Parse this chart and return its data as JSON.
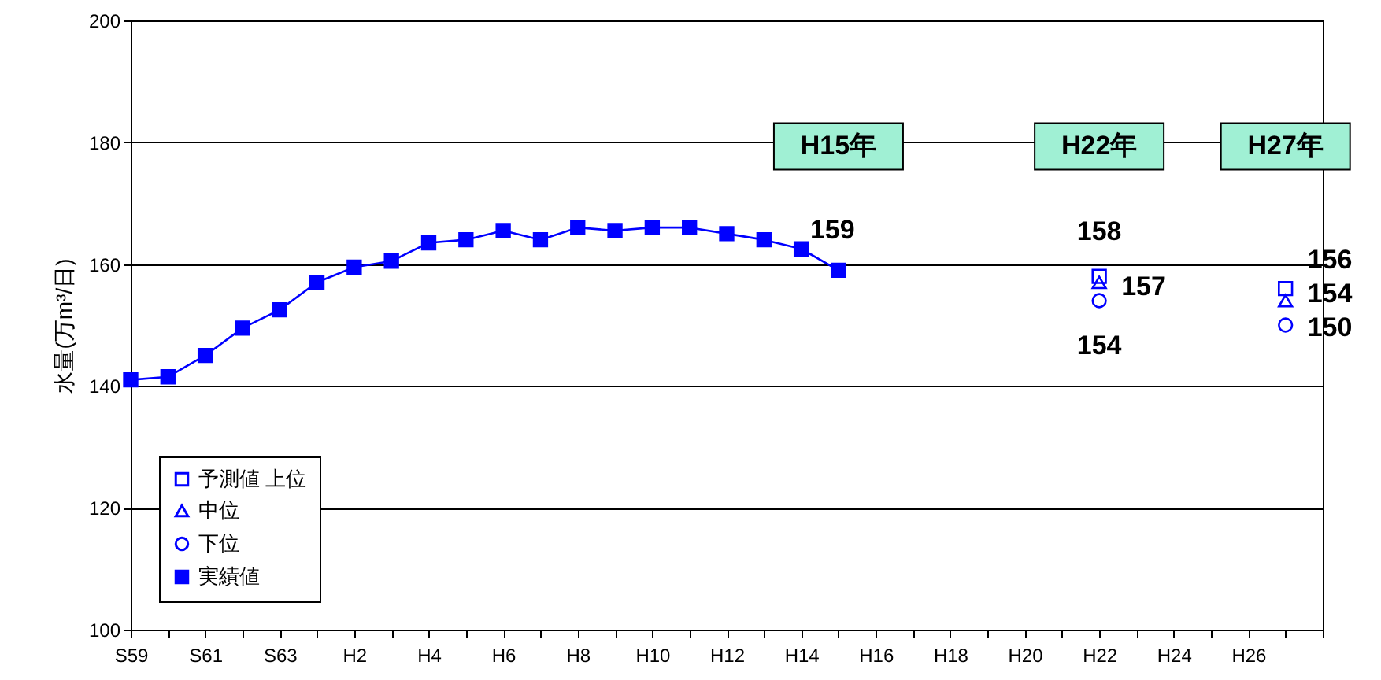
{
  "chart_data": {
    "type": "line",
    "ylabel": "水量(万m³/日)",
    "categories": [
      "S59",
      null,
      "S61",
      null,
      "S63",
      null,
      "H2",
      null,
      "H4",
      null,
      "H6",
      null,
      "H8",
      null,
      "H10",
      null,
      "H12",
      null,
      "H14",
      null,
      "H16",
      null,
      "H18",
      null,
      "H20",
      null,
      "H22",
      null,
      "H24",
      null,
      "H26",
      null,
      null
    ],
    "series": [
      {
        "name": "予測値 上位",
        "type": "scatter",
        "marker": "square",
        "color": "#0000ff",
        "values": [
          null,
          null,
          null,
          null,
          null,
          null,
          null,
          null,
          null,
          null,
          null,
          null,
          null,
          null,
          null,
          null,
          null,
          null,
          null,
          null,
          null,
          null,
          null,
          null,
          null,
          null,
          158,
          null,
          null,
          null,
          null,
          156,
          null
        ],
        "value_labels": [
          null,
          null,
          null,
          null,
          null,
          null,
          null,
          null,
          null,
          null,
          null,
          null,
          null,
          null,
          null,
          null,
          null,
          null,
          null,
          null,
          null,
          null,
          null,
          null,
          null,
          null,
          "158",
          null,
          null,
          null,
          null,
          "156",
          null
        ]
      },
      {
        "name": "中位",
        "type": "scatter",
        "marker": "triangle",
        "color": "#0000ff",
        "values": [
          null,
          null,
          null,
          null,
          null,
          null,
          null,
          null,
          null,
          null,
          null,
          null,
          null,
          null,
          null,
          null,
          null,
          null,
          null,
          null,
          null,
          null,
          null,
          null,
          null,
          null,
          157,
          null,
          null,
          null,
          null,
          154,
          null
        ],
        "value_labels": [
          null,
          null,
          null,
          null,
          null,
          null,
          null,
          null,
          null,
          null,
          null,
          null,
          null,
          null,
          null,
          null,
          null,
          null,
          null,
          null,
          null,
          null,
          null,
          null,
          null,
          null,
          "157",
          null,
          null,
          null,
          null,
          "154",
          null
        ]
      },
      {
        "name": "下位",
        "type": "scatter",
        "marker": "circle",
        "color": "#0000ff",
        "values": [
          null,
          null,
          null,
          null,
          null,
          null,
          null,
          null,
          null,
          null,
          null,
          null,
          null,
          null,
          null,
          null,
          null,
          null,
          null,
          null,
          null,
          null,
          null,
          null,
          null,
          null,
          154,
          null,
          null,
          null,
          null,
          150,
          null
        ],
        "value_labels": [
          null,
          null,
          null,
          null,
          null,
          null,
          null,
          null,
          null,
          null,
          null,
          null,
          null,
          null,
          null,
          null,
          null,
          null,
          null,
          null,
          null,
          null,
          null,
          null,
          null,
          null,
          "154",
          null,
          null,
          null,
          null,
          "150",
          null
        ]
      },
      {
        "name": "実績値",
        "type": "line",
        "marker": "square",
        "color": "#0000ff",
        "values": [
          141,
          141.5,
          145,
          149.5,
          152.5,
          157,
          159.5,
          160.5,
          163.5,
          164,
          165.5,
          164,
          166,
          165.5,
          166,
          166,
          165,
          164,
          162.5,
          159,
          null,
          null,
          null,
          null,
          null,
          null,
          null,
          null,
          null,
          null,
          null,
          null,
          null
        ],
        "value_labels": [
          null,
          null,
          null,
          null,
          null,
          null,
          null,
          null,
          null,
          null,
          null,
          null,
          null,
          null,
          null,
          null,
          null,
          null,
          null,
          "159",
          null,
          null,
          null,
          null,
          null,
          null,
          null,
          null,
          null,
          null,
          null,
          null,
          null
        ]
      }
    ],
    "annotations": [
      "H15年",
      "H22年",
      "H27年"
    ],
    "ylim": [
      100,
      200
    ],
    "yticks": [
      100,
      120,
      140,
      160,
      180,
      200
    ],
    "grid": "y",
    "legend": "bottom left"
  }
}
